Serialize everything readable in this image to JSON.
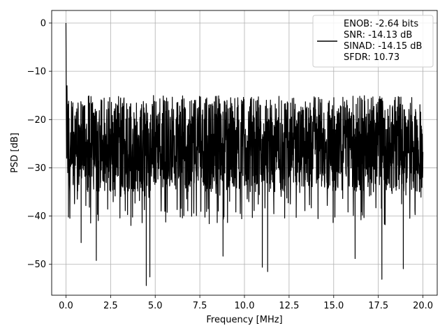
{
  "chart_data": {
    "type": "line",
    "title": "",
    "xlabel": "Frequency [MHz]",
    "ylabel": "PSD [dB]",
    "xlim": [
      -0.8,
      20.8
    ],
    "ylim": [
      -56.4,
      2.6
    ],
    "grid": true,
    "legend_position": "top-right",
    "x_ticks": [
      0.0,
      2.5,
      5.0,
      7.5,
      10.0,
      12.5,
      15.0,
      17.5,
      20.0
    ],
    "x_tick_labels": [
      "0.0",
      "2.5",
      "5.0",
      "7.5",
      "10.0",
      "12.5",
      "15.0",
      "17.5",
      "20.0"
    ],
    "y_ticks": [
      0,
      -10,
      -20,
      -30,
      -40,
      -50
    ],
    "y_tick_labels": [
      "0",
      "−10",
      "−20",
      "−30",
      "−40",
      "−50"
    ],
    "series": [
      {
        "color": "#000000",
        "noise_floor": {
          "x_range": [
            0.0,
            20.0
          ],
          "typical_range": [
            -35,
            -19
          ],
          "upper_envelope_peak": -15,
          "lower_spikes": [
            {
              "x": 0.85,
              "y": -45.5
            },
            {
              "x": 1.7,
              "y": -49.2
            },
            {
              "x": 4.5,
              "y": -54.4
            },
            {
              "x": 4.7,
              "y": -52.6
            },
            {
              "x": 8.8,
              "y": -48.3
            },
            {
              "x": 11.0,
              "y": -50.6
            },
            {
              "x": 11.3,
              "y": -51.5
            },
            {
              "x": 16.2,
              "y": -48.8
            },
            {
              "x": 17.7,
              "y": -53.1
            },
            {
              "x": 18.9,
              "y": -50.9
            }
          ]
        },
        "peak": {
          "x": 0.0,
          "y": 0.0
        }
      }
    ],
    "legend": {
      "lines": [
        "ENOB: -2.64 bits",
        "SNR: -14.13 dB",
        "SINAD: -14.15 dB",
        "SFDR: 10.73"
      ]
    }
  }
}
